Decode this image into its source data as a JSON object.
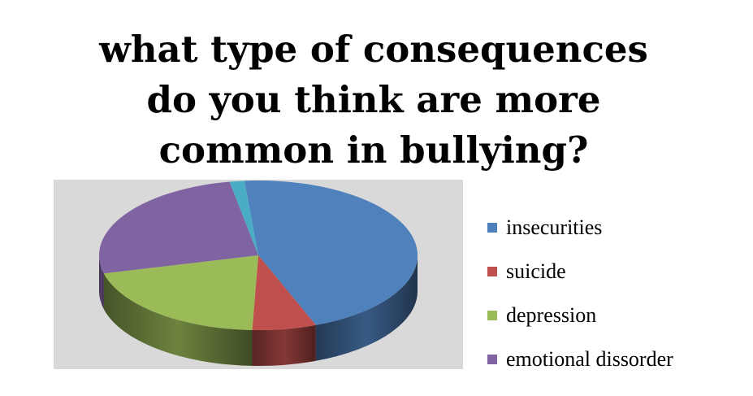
{
  "chart_data": {
    "type": "pie",
    "title_lines": [
      "what type of consequences",
      "do you think are more",
      "common in bullying?"
    ],
    "categories": [
      "insecurities",
      "suicide",
      "depression",
      "emotional dissorder",
      ""
    ],
    "values": [
      45.5,
      6.5,
      20.5,
      26.0,
      1.5
    ],
    "colors": [
      "#4f81bd",
      "#c0504d",
      "#9bbb59",
      "#8064a2",
      "#4bacc6"
    ],
    "legend_entries": [
      "insecurities",
      "suicide",
      "depression",
      "emotional dissorder"
    ],
    "legend_position": "right",
    "style": "3d"
  }
}
